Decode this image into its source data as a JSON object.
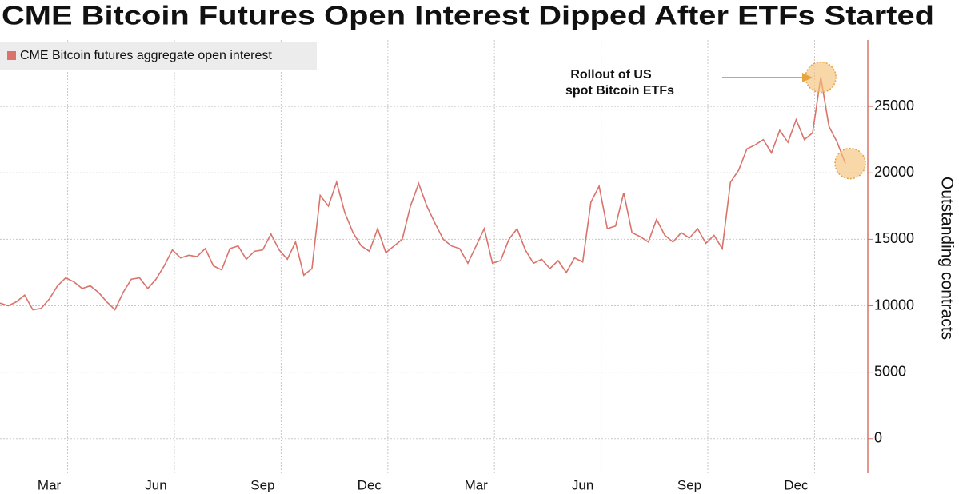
{
  "chart_data": {
    "type": "line",
    "title": "CME Bitcoin Futures Open Interest Dipped After ETFs Started",
    "y_label": "Outstanding contracts",
    "annotation": [
      "Rollout of US",
      "spot Bitcoin ETFs"
    ],
    "categories": [
      null,
      null,
      null,
      null,
      null,
      null,
      "Mar",
      null,
      null,
      null,
      null,
      null,
      null,
      null,
      null,
      null,
      null,
      null,
      null,
      "Jun",
      null,
      null,
      null,
      null,
      null,
      null,
      null,
      null,
      null,
      null,
      null,
      null,
      "Sep",
      null,
      null,
      null,
      null,
      null,
      null,
      null,
      null,
      null,
      null,
      null,
      null,
      "Dec",
      null,
      null,
      null,
      null,
      null,
      null,
      null,
      null,
      null,
      null,
      null,
      null,
      "Mar",
      null,
      null,
      null,
      null,
      null,
      null,
      null,
      null,
      null,
      null,
      null,
      null,
      "Jun",
      null,
      null,
      null,
      null,
      null,
      null,
      null,
      null,
      null,
      null,
      null,
      null,
      "Sep",
      null,
      null,
      null,
      null,
      null,
      null,
      null,
      null,
      null,
      null,
      null,
      null,
      "Dec",
      null,
      null,
      null,
      null,
      null,
      null
    ],
    "series": [
      {
        "name": "CME Bitcoin futures aggregate open interest",
        "color": "#d9736b",
        "values": [
          10200,
          10000,
          10300,
          10800,
          9700,
          9800,
          10500,
          11500,
          12100,
          11800,
          11300,
          11500,
          11000,
          10300,
          9700,
          11000,
          12000,
          12100,
          11300,
          12000,
          13000,
          14200,
          13600,
          13800,
          13700,
          14300,
          13000,
          12700,
          14300,
          14500,
          13500,
          14100,
          14200,
          15400,
          14200,
          13500,
          14800,
          12300,
          12800,
          18300,
          17500,
          19300,
          17000,
          15500,
          14500,
          14100,
          15800,
          14000,
          14500,
          15000,
          17500,
          19200,
          17500,
          16200,
          15000,
          14500,
          14300,
          13200,
          14500,
          15800,
          13200,
          13400,
          15000,
          15800,
          14200,
          13200,
          13500,
          12800,
          13400,
          12500,
          13600,
          13300,
          17800,
          19000,
          15800,
          16000,
          18500,
          15500,
          15200,
          14800,
          16500,
          15300,
          14800,
          15500,
          15100,
          15800,
          14700,
          15300,
          14300,
          19300,
          20200,
          21800,
          22100,
          22500,
          21500,
          23200,
          22300,
          24000,
          22500,
          23000,
          27200,
          23500,
          22300,
          20700
        ]
      }
    ],
    "ylim": [
      -2600,
      30000
    ],
    "yticks": [
      0,
      5000,
      10000,
      15000,
      20000,
      25000
    ],
    "grid": true
  }
}
